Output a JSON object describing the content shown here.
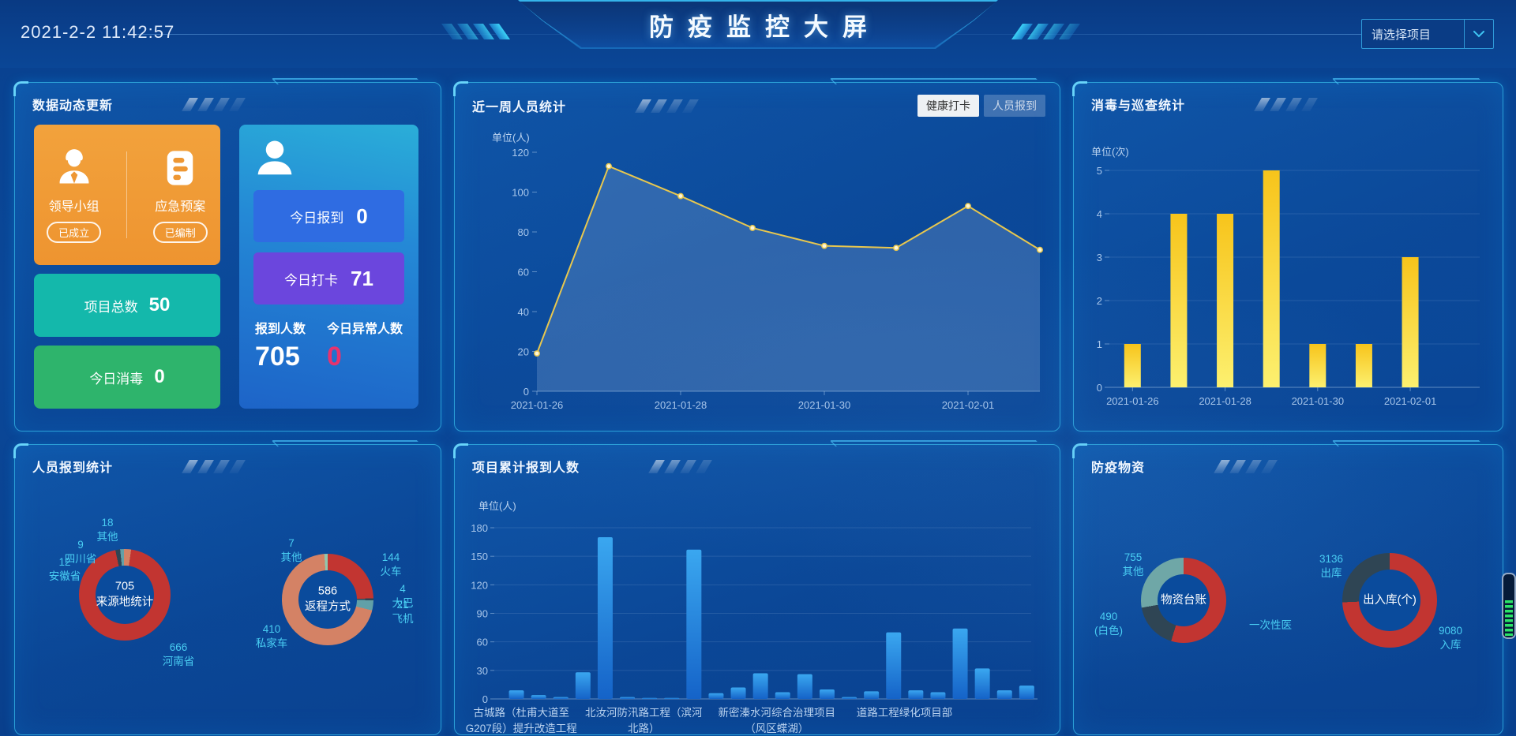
{
  "topbar": {
    "time": "2021-2-2 11:42:57",
    "title": "防疫监控大屏",
    "project_select": {
      "placeholder": "请选择项目",
      "chevron_icon": "chevron-down"
    }
  },
  "panels": {
    "data_update": {
      "title": "数据动态更新",
      "leader_group": {
        "icon": "person-tie-icon",
        "label": "领导小组",
        "badge": "已成立"
      },
      "emergency_plan": {
        "icon": "document-icon",
        "label": "应急预案",
        "badge": "已编制"
      },
      "project_total": {
        "label": "项目总数",
        "value": "50"
      },
      "today_disinfect": {
        "label": "今日消毒",
        "value": "0"
      },
      "person_card": {
        "icon": "person-icon",
        "today_report": {
          "label": "今日报到",
          "value": "0"
        },
        "today_punch": {
          "label": "今日打卡",
          "value": "71"
        },
        "report_total": {
          "label": "报到人数",
          "value": "705"
        },
        "today_abnormal": {
          "label": "今日异常人数",
          "value": "0"
        }
      }
    },
    "weekly": {
      "title": "近一周人员统计",
      "tabs": [
        {
          "label": "健康打卡",
          "active": true
        },
        {
          "label": "人员报到",
          "active": false
        }
      ]
    },
    "disinfect": {
      "title": "消毒与巡查统计"
    },
    "report_stats": {
      "title": "人员报到统计"
    },
    "project_report": {
      "title": "项目累计报到人数"
    },
    "supplies": {
      "title": "防疫物资"
    }
  },
  "chart_data": [
    {
      "id": "weekly_line",
      "type": "line",
      "title": "近一周人员统计",
      "ylabel": "单位(人)",
      "ylim": [
        0,
        120
      ],
      "ytick_step": 20,
      "grid": false,
      "legend_position": "none",
      "categories": [
        "2021-01-26",
        "2021-01-27",
        "2021-01-28",
        "2021-01-29",
        "2021-01-30",
        "2021-01-31",
        "2021-02-01",
        "2021-02-02"
      ],
      "values": [
        19,
        113,
        98,
        82,
        73,
        72,
        93,
        71
      ],
      "x_label_interval": 2,
      "line_color": "#e8c74e",
      "point_fill": "#fdf6d8",
      "area_fill": "rgba(150,180,220,0.26)"
    },
    {
      "id": "disinfect_bar",
      "type": "bar",
      "title": "消毒与巡查统计",
      "ylabel": "单位(次)",
      "ylim": [
        0,
        5
      ],
      "ytick_step": 1,
      "grid": true,
      "categories": [
        "2021-01-26",
        "2021-01-27",
        "2021-01-28",
        "2021-01-29",
        "2021-01-30",
        "2021-01-31",
        "2021-02-01",
        "2021-02-02"
      ],
      "values": [
        1,
        4,
        4,
        5,
        1,
        1,
        3,
        0
      ],
      "x_label_interval": 2,
      "bar_color_top": "#f7c41b",
      "bar_color_bottom": "#fcf06f"
    },
    {
      "id": "project_bar",
      "type": "bar",
      "title": "项目累计报到人数",
      "ylabel": "单位(人)",
      "ylim": [
        0,
        180
      ],
      "ytick_step": 30,
      "grid": true,
      "values": [
        9,
        4,
        2,
        28,
        170,
        2,
        1,
        1,
        157,
        6,
        12,
        27,
        7,
        26,
        10,
        2,
        8,
        70,
        9,
        7,
        74,
        32,
        9,
        14
      ],
      "visible_labels": [
        {
          "text": "古城路（杜甫大道至G207段）提升改造工程",
          "center_pct": 3
        },
        {
          "text": "北汝河防汛路工程（滨河北路）",
          "center_pct": 26
        },
        {
          "text": "新密溱水河综合治理项目（风区蝶湖）",
          "center_pct": 51
        },
        {
          "text": "道路工程绿化项目部",
          "center_pct": 75
        }
      ],
      "bar_color_top": "#3aa7f0",
      "bar_color_bottom": "#1563c8"
    },
    {
      "id": "origin_donut",
      "type": "pie",
      "start_angle": 8,
      "center": {
        "value": "705",
        "label": "来源地统计"
      },
      "segments": [
        {
          "label": "河南省",
          "value": 666,
          "color": "#c23531"
        },
        {
          "label": "安徽省",
          "value": 12,
          "color": "#2f4554"
        },
        {
          "label": "四川省",
          "value": 9,
          "color": "#61a0a8"
        },
        {
          "label": "其他",
          "value": 18,
          "color": "#d48265"
        }
      ]
    },
    {
      "id": "return_donut",
      "type": "pie",
      "start_angle": 0,
      "center": {
        "value": "586",
        "label": "返程方式"
      },
      "segments": [
        {
          "label": "火车",
          "value": 144,
          "color": "#c23531"
        },
        {
          "label": "大巴",
          "value": 4,
          "color": "#2f4554"
        },
        {
          "label": "飞机",
          "value": 21,
          "color": "#61a0a8"
        },
        {
          "label": "私家车",
          "value": 410,
          "color": "#d48265"
        },
        {
          "label": "其他",
          "value": 7,
          "color": "#91c7ae"
        }
      ]
    },
    {
      "id": "supplies_donut",
      "type": "pie",
      "start_angle": 0,
      "center": {
        "label": "物资台账"
      },
      "segments": [
        {
          "label": "一次性医",
          "value": null,
          "angle_deg": 197,
          "color": "#c23531"
        },
        {
          "label": "(白色)",
          "value": 490,
          "angle_deg": 63,
          "color": "#2f4554"
        },
        {
          "label": "其他",
          "value": 755,
          "angle_deg": 100,
          "color": "#6fa7a7"
        }
      ]
    },
    {
      "id": "inout_donut",
      "type": "pie",
      "start_angle": 0,
      "center": {
        "label": "出入库(个)"
      },
      "segments": [
        {
          "label": "入库",
          "value": 9080,
          "color": "#c23531"
        },
        {
          "label": "出库",
          "value": 3136,
          "color": "#2f4554"
        }
      ]
    }
  ]
}
